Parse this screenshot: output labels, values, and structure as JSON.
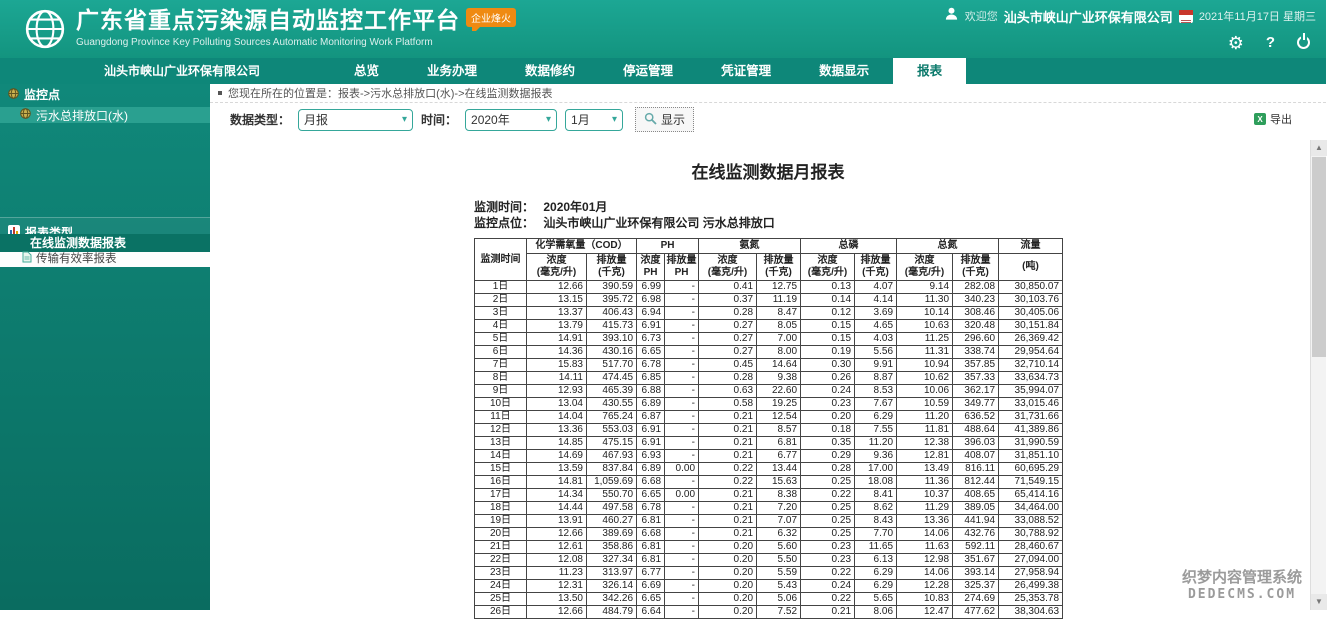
{
  "header": {
    "title": "广东省重点污染源自动监控工作平台",
    "subtitle": "Guangdong Province Key Polluting Sources Automatic Monitoring Work Platform",
    "badge": "企业烽火",
    "welcome": "欢迎您",
    "company": "汕头市峡山广业环保有限公司",
    "date": "2021年11月17日 星期三"
  },
  "nav": {
    "company": "汕头市峡山广业环保有限公司",
    "items": [
      "总览",
      "业务办理",
      "数据修约",
      "停运管理",
      "凭证管理",
      "数据显示",
      "报表"
    ],
    "active_index": 6
  },
  "sidebar": {
    "monitor_section": "监控点",
    "monitor_item": "污水总排放口(水)",
    "report_section": "报表类型",
    "report_items": [
      "在线监测数据报表",
      "传输有效率报表"
    ]
  },
  "breadcrumb": "您现在所在的位置是：报表->污水总排放口(水)->在线监测数据报表",
  "filters": {
    "data_type_label": "数据类型：",
    "data_type_value": "月报",
    "time_label": "时间：",
    "year_value": "2020年",
    "month_value": "1月",
    "show_label": "显示",
    "export_label": "导出"
  },
  "report": {
    "title": "在线监测数据月报表",
    "monitor_time_label": "监测时间：",
    "monitor_time": "2020年01月",
    "monitor_point_label": "监控点位：",
    "monitor_point": "汕头市峡山广业环保有限公司 污水总排放口"
  },
  "table": {
    "time_header": "监测时间",
    "groups": [
      {
        "label": "化学需氧量（COD）",
        "sub": [
          "浓度\n(毫克/升)",
          "排放量\n(千克)"
        ]
      },
      {
        "label": "PH",
        "sub": [
          "浓度\nPH",
          "排放量\nPH"
        ]
      },
      {
        "label": "氨氮",
        "sub": [
          "浓度\n(毫克/升)",
          "排放量\n(千克)"
        ]
      },
      {
        "label": "总磷",
        "sub": [
          "浓度\n(毫克/升)",
          "排放量\n(千克)"
        ]
      },
      {
        "label": "总氮",
        "sub": [
          "浓度\n(毫克/升)",
          "排放量\n(千克)"
        ]
      }
    ],
    "flow": {
      "label": "流量",
      "sub": "(吨)"
    },
    "rows": [
      [
        "1日",
        "12.66",
        "390.59",
        "6.99",
        "-",
        "0.41",
        "12.75",
        "0.13",
        "4.07",
        "9.14",
        "282.08",
        "30,850.07"
      ],
      [
        "2日",
        "13.15",
        "395.72",
        "6.98",
        "-",
        "0.37",
        "11.19",
        "0.14",
        "4.14",
        "11.30",
        "340.23",
        "30,103.76"
      ],
      [
        "3日",
        "13.37",
        "406.43",
        "6.94",
        "-",
        "0.28",
        "8.47",
        "0.12",
        "3.69",
        "10.14",
        "308.46",
        "30,405.06"
      ],
      [
        "4日",
        "13.79",
        "415.73",
        "6.91",
        "-",
        "0.27",
        "8.05",
        "0.15",
        "4.65",
        "10.63",
        "320.48",
        "30,151.84"
      ],
      [
        "5日",
        "14.91",
        "393.10",
        "6.73",
        "-",
        "0.27",
        "7.00",
        "0.15",
        "4.03",
        "11.25",
        "296.60",
        "26,369.42"
      ],
      [
        "6日",
        "14.36",
        "430.16",
        "6.65",
        "-",
        "0.27",
        "8.00",
        "0.19",
        "5.56",
        "11.31",
        "338.74",
        "29,954.64"
      ],
      [
        "7日",
        "15.83",
        "517.70",
        "6.78",
        "-",
        "0.45",
        "14.64",
        "0.30",
        "9.91",
        "10.94",
        "357.85",
        "32,710.14"
      ],
      [
        "8日",
        "14.11",
        "474.45",
        "6.85",
        "-",
        "0.28",
        "9.38",
        "0.26",
        "8.87",
        "10.62",
        "357.33",
        "33,634.73"
      ],
      [
        "9日",
        "12.93",
        "465.39",
        "6.88",
        "-",
        "0.63",
        "22.60",
        "0.24",
        "8.53",
        "10.06",
        "362.17",
        "35,994.07"
      ],
      [
        "10日",
        "13.04",
        "430.55",
        "6.89",
        "-",
        "0.58",
        "19.25",
        "0.23",
        "7.67",
        "10.59",
        "349.77",
        "33,015.46"
      ],
      [
        "11日",
        "14.04",
        "765.24",
        "6.87",
        "-",
        "0.21",
        "12.54",
        "0.20",
        "6.29",
        "11.20",
        "636.52",
        "31,731.66"
      ],
      [
        "12日",
        "13.36",
        "553.03",
        "6.91",
        "-",
        "0.21",
        "8.57",
        "0.18",
        "7.55",
        "11.81",
        "488.64",
        "41,389.86"
      ],
      [
        "13日",
        "14.85",
        "475.15",
        "6.91",
        "-",
        "0.21",
        "6.81",
        "0.35",
        "11.20",
        "12.38",
        "396.03",
        "31,990.59"
      ],
      [
        "14日",
        "14.69",
        "467.93",
        "6.93",
        "-",
        "0.21",
        "6.77",
        "0.29",
        "9.36",
        "12.81",
        "408.07",
        "31,851.10"
      ],
      [
        "15日",
        "13.59",
        "837.84",
        "6.89",
        "0.00",
        "0.22",
        "13.44",
        "0.28",
        "17.00",
        "13.49",
        "816.11",
        "60,695.29"
      ],
      [
        "16日",
        "14.81",
        "1,059.69",
        "6.68",
        "-",
        "0.22",
        "15.63",
        "0.25",
        "18.08",
        "11.36",
        "812.44",
        "71,549.15"
      ],
      [
        "17日",
        "14.34",
        "550.70",
        "6.65",
        "0.00",
        "0.21",
        "8.38",
        "0.22",
        "8.41",
        "10.37",
        "408.65",
        "65,414.16"
      ],
      [
        "18日",
        "14.44",
        "497.58",
        "6.78",
        "-",
        "0.21",
        "7.20",
        "0.25",
        "8.62",
        "11.29",
        "389.05",
        "34,464.00"
      ],
      [
        "19日",
        "13.91",
        "460.27",
        "6.81",
        "-",
        "0.21",
        "7.07",
        "0.25",
        "8.43",
        "13.36",
        "441.94",
        "33,088.52"
      ],
      [
        "20日",
        "12.66",
        "389.69",
        "6.68",
        "-",
        "0.21",
        "6.32",
        "0.25",
        "7.70",
        "14.06",
        "432.76",
        "30,788.92"
      ],
      [
        "21日",
        "12.61",
        "358.86",
        "6.81",
        "-",
        "0.20",
        "5.60",
        "0.23",
        "11.65",
        "11.63",
        "592.11",
        "28,460.67"
      ],
      [
        "22日",
        "12.08",
        "327.34",
        "6.81",
        "-",
        "0.20",
        "5.50",
        "0.23",
        "6.13",
        "12.98",
        "351.67",
        "27,094.00"
      ],
      [
        "23日",
        "11.23",
        "313.97",
        "6.77",
        "-",
        "0.20",
        "5.59",
        "0.22",
        "6.29",
        "14.06",
        "393.14",
        "27,958.94"
      ],
      [
        "24日",
        "12.31",
        "326.14",
        "6.69",
        "-",
        "0.20",
        "5.43",
        "0.24",
        "6.29",
        "12.28",
        "325.37",
        "26,499.38"
      ],
      [
        "25日",
        "13.50",
        "342.26",
        "6.65",
        "-",
        "0.20",
        "5.06",
        "0.22",
        "5.65",
        "10.83",
        "274.69",
        "25,353.78"
      ],
      [
        "26日",
        "12.66",
        "484.79",
        "6.64",
        "-",
        "0.20",
        "7.52",
        "0.21",
        "8.06",
        "12.47",
        "477.62",
        "38,304.63"
      ]
    ]
  },
  "watermark": {
    "line1": "织梦内容管理系统",
    "line2": "DEDECMS.COM"
  }
}
